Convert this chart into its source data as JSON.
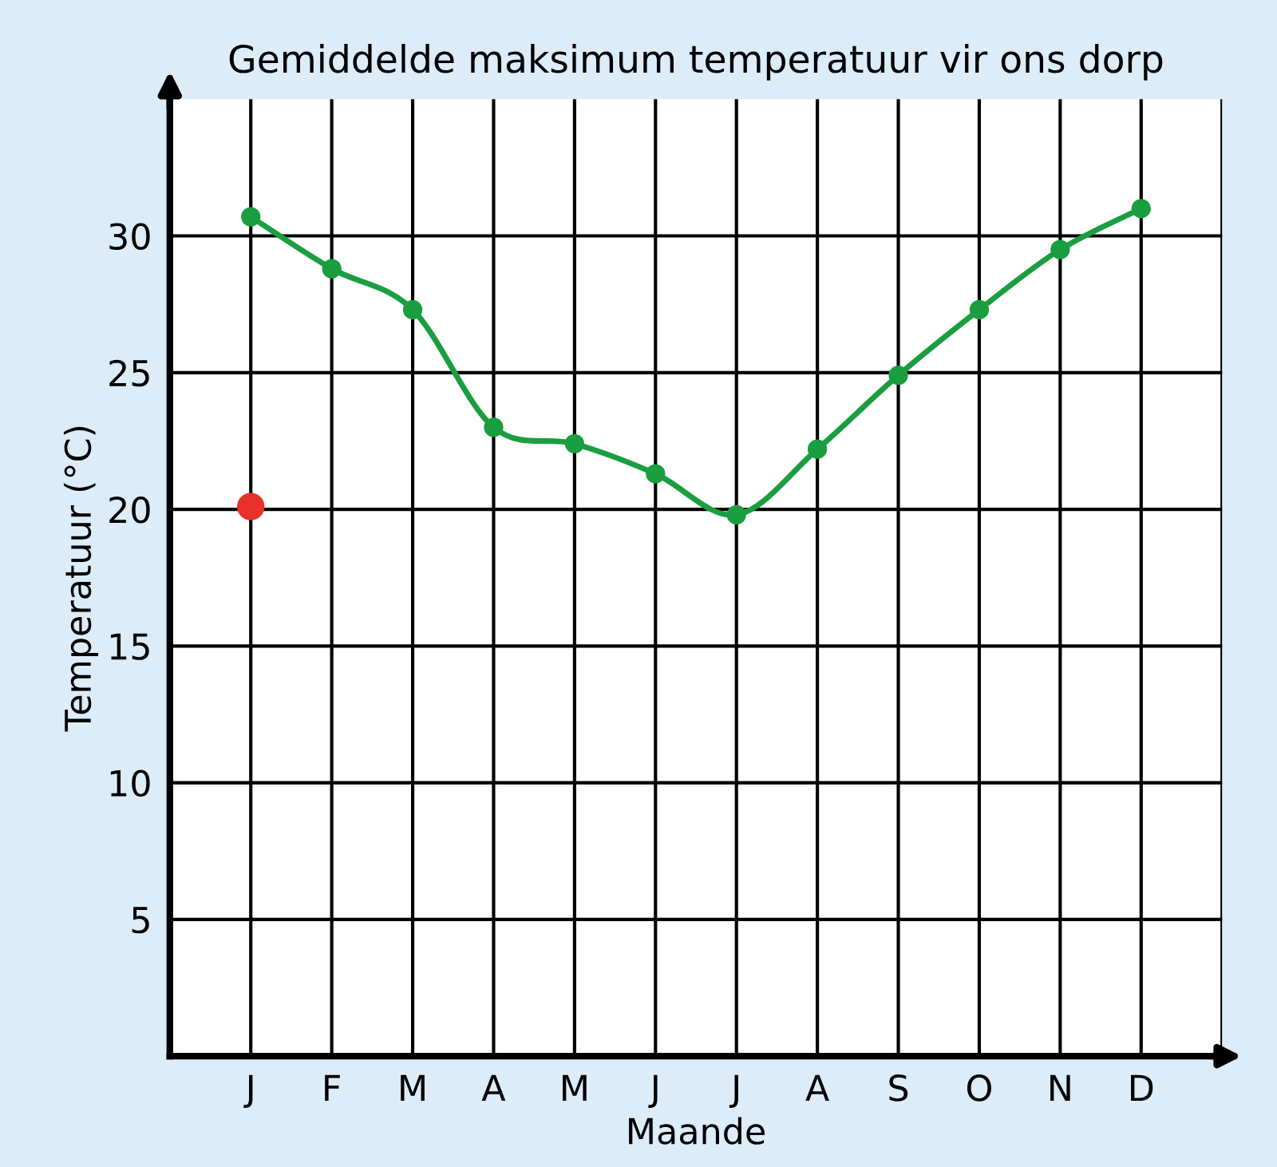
{
  "chart_data": {
    "type": "line",
    "title": "Gemiddelde maksimum temperatuur vir ons dorp",
    "xlabel": "Maande",
    "ylabel": "Temperatuur (°C)",
    "categories": [
      "J",
      "F",
      "M",
      "A",
      "M",
      "J",
      "J",
      "A",
      "S",
      "O",
      "N",
      "D"
    ],
    "series": [
      {
        "color": "#1a9e3f",
        "marker": "circle",
        "values": [
          30.7,
          28.8,
          27.3,
          23.0,
          22.4,
          21.3,
          19.8,
          22.2,
          24.9,
          27.3,
          29.5,
          31.0
        ]
      },
      {
        "type": "scatter",
        "color": "#e8312a",
        "marker": "circle",
        "values": [
          20.1,
          null,
          null,
          null,
          null,
          null,
          null,
          null,
          null,
          null,
          null,
          null
        ]
      }
    ],
    "ylim": [
      0,
      35
    ],
    "yticks": [
      5,
      10,
      15,
      20,
      25,
      30
    ],
    "grid": true,
    "legend": false
  }
}
